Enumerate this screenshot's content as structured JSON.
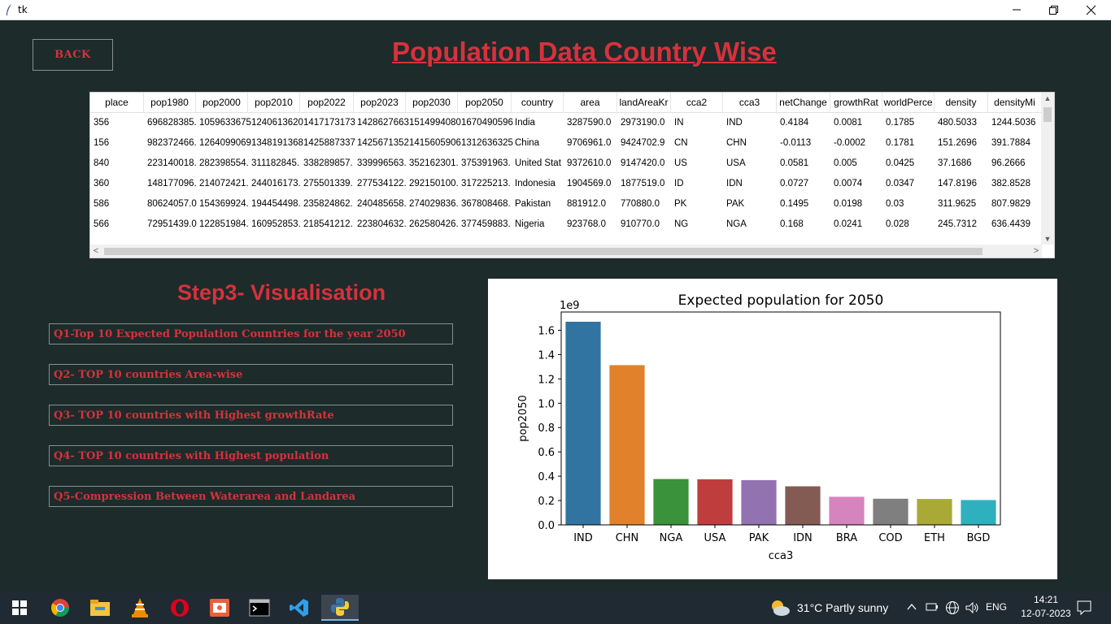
{
  "window": {
    "title": "tk",
    "minimize_icon": "minimize-icon",
    "maximize_icon": "restore-icon",
    "close_icon": "close-icon"
  },
  "header": {
    "back_label": "BACK",
    "title": "Population Data Country Wise"
  },
  "table": {
    "columns": [
      "place",
      "pop1980",
      "pop2000",
      "pop2010",
      "pop2022",
      "pop2023",
      "pop2030",
      "pop2050",
      "country",
      "area",
      "landAreaKr",
      "cca2",
      "cca3",
      "netChange",
      "growthRat",
      "worldPerce",
      "density",
      "densityMi"
    ],
    "rows": [
      [
        "356",
        "696828385.",
        "1059633675",
        "1240613620",
        "1417173173",
        "1428627663",
        "1514994080",
        "1670490596",
        "India",
        "3287590.0",
        "2973190.0",
        "IN",
        "IND",
        "0.4184",
        "0.0081",
        "0.1785",
        "480.5033",
        "1244.5036"
      ],
      [
        "156",
        "982372466.",
        "1264099069",
        "1348191368",
        "1425887337",
        "1425671352",
        "1415605906",
        "1312636325",
        "China",
        "9706961.0",
        "9424702.9",
        "CN",
        "CHN",
        "-0.0113",
        "-0.0002",
        "0.1781",
        "151.2696",
        "391.7884"
      ],
      [
        "840",
        "223140018.",
        "282398554.",
        "311182845.",
        "338289857.",
        "339996563.",
        "352162301.",
        "375391963.",
        "United Stat",
        "9372610.0",
        "9147420.0",
        "US",
        "USA",
        "0.0581",
        "0.005",
        "0.0425",
        "37.1686",
        "96.2666"
      ],
      [
        "360",
        "148177096.",
        "214072421.",
        "244016173.",
        "275501339.",
        "277534122.",
        "292150100.",
        "317225213.",
        "Indonesia",
        "1904569.0",
        "1877519.0",
        "ID",
        "IDN",
        "0.0727",
        "0.0074",
        "0.0347",
        "147.8196",
        "382.8528"
      ],
      [
        "586",
        "80624057.0",
        "154369924.",
        "194454498.",
        "235824862.",
        "240485658.",
        "274029836.",
        "367808468.",
        "Pakistan",
        "881912.0",
        "770880.0",
        "PK",
        "PAK",
        "0.1495",
        "0.0198",
        "0.03",
        "311.9625",
        "807.9829"
      ],
      [
        "566",
        "72951439.0",
        "122851984.",
        "160952853.",
        "218541212.",
        "223804632.",
        "262580426.",
        "377459883.",
        "Nigeria",
        "923768.0",
        "910770.0",
        "NG",
        "NGA",
        "0.168",
        "0.0241",
        "0.028",
        "245.7312",
        "636.4439"
      ]
    ]
  },
  "visual": {
    "step_title": "Step3- Visualisation",
    "buttons": [
      "Q1-Top 10 Expected Population Countries for the year 2050",
      "Q2-  TOP 10 countries Area-wise",
      "Q3-  TOP 10 countries with Highest growthRate",
      "Q4-  TOP 10 countries with Highest population",
      "Q5-Compression Between Waterarea and Landarea"
    ]
  },
  "chart_data": {
    "type": "bar",
    "title": "Expected population for 2050",
    "xlabel": "cca3",
    "ylabel": "pop2050",
    "y_multiplier_label": "1e9",
    "categories": [
      "IND",
      "CHN",
      "NGA",
      "USA",
      "PAK",
      "IDN",
      "BRA",
      "COD",
      "ETH",
      "BGD"
    ],
    "values": [
      1.67,
      1.313,
      0.377,
      0.375,
      0.368,
      0.317,
      0.231,
      0.215,
      0.213,
      0.204
    ],
    "colors": [
      "#3274a1",
      "#e1812c",
      "#3a923a",
      "#c03d3e",
      "#9372b2",
      "#845b53",
      "#d684bd",
      "#7f7f7f",
      "#a9aa35",
      "#2eb0bf"
    ],
    "yticks": [
      "0.0",
      "0.2",
      "0.4",
      "0.6",
      "0.8",
      "1.0",
      "1.2",
      "1.4",
      "1.6"
    ],
    "ylim": [
      0,
      1.75
    ]
  },
  "taskbar": {
    "apps": [
      "start-icon",
      "chrome-icon",
      "file-explorer-icon",
      "vlc-icon",
      "opera-icon",
      "presentation-icon",
      "terminal-icon",
      "vscode-icon",
      "python-icon"
    ],
    "weather": "31°C  Partly sunny",
    "language": "ENG",
    "time": "14:21",
    "date": "12-07-2023"
  }
}
